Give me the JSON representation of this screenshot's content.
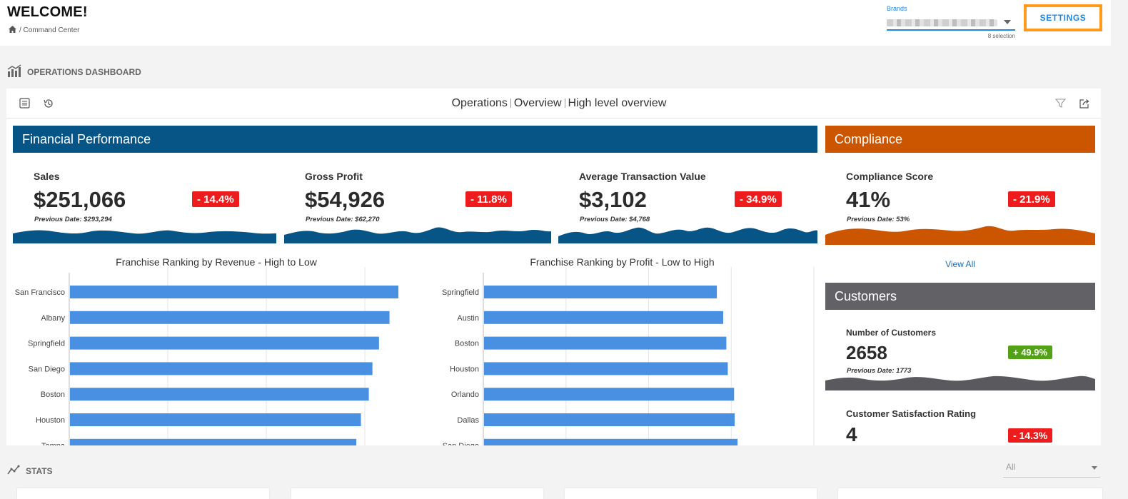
{
  "header": {
    "welcome": "WELCOME!",
    "breadcrumb": "/ Command Center",
    "brands_label": "Brands",
    "brands_selection": "8 selection",
    "settings_label": "SETTINGS"
  },
  "sections": {
    "operations_title": "OPERATIONS DASHBOARD",
    "stats_title": "STATS",
    "stats_filter_value": "All"
  },
  "panel": {
    "title_parts": [
      "Operations",
      "Overview",
      "High level overview"
    ]
  },
  "financial": {
    "header": "Financial Performance",
    "color": "#075487",
    "kpis": [
      {
        "title": "Sales",
        "value": "$251,066",
        "change": "- 14.4%",
        "previous": "Previous Date: $293,294"
      },
      {
        "title": "Gross Profit",
        "value": "$54,926",
        "change": "- 11.8%",
        "previous": "Previous Date: $62,270"
      },
      {
        "title": "Average Transaction Value",
        "value": "$3,102",
        "change": "- 34.9%",
        "previous": "Previous Date: $4,768"
      }
    ]
  },
  "compliance": {
    "header": "Compliance",
    "color": "#cc5500",
    "kpi": {
      "title": "Compliance Score",
      "value": "41%",
      "change": "- 21.9%",
      "previous": "Previous Date: 53%"
    },
    "view_all": "View All"
  },
  "customers": {
    "header": "Customers",
    "color": "#626266",
    "kpis": [
      {
        "title": "Number of Customers",
        "value": "2658",
        "change": "+ 49.9%",
        "previous": "Previous Date: 1773"
      },
      {
        "title": "Customer Satisfaction Rating",
        "value": "4",
        "change": "- 14.3%"
      }
    ]
  },
  "chart_data": [
    {
      "type": "bar",
      "orientation": "horizontal",
      "title": "Franchise Ranking by Revenue - High to Low",
      "categories": [
        "San Francisco",
        "Albany",
        "Springfield",
        "San Diego",
        "Boston",
        "Houston",
        "Tampa"
      ],
      "values": [
        100,
        97.3,
        94.1,
        92.1,
        91.0,
        88.6,
        87.2
      ],
      "xlim": [
        0,
        120
      ],
      "grid": true,
      "color": "#4a90e2"
    },
    {
      "type": "bar",
      "orientation": "horizontal",
      "title": "Franchise Ranking by Profit - Low to High",
      "categories": [
        "Springfield",
        "Austin",
        "Boston",
        "Houston",
        "Orlando",
        "Dallas",
        "San Diego"
      ],
      "values": [
        81.0,
        83.2,
        84.3,
        84.8,
        87.0,
        87.2,
        88.2
      ],
      "xlim": [
        0,
        115
      ],
      "grid": true,
      "color": "#4a90e2"
    }
  ]
}
